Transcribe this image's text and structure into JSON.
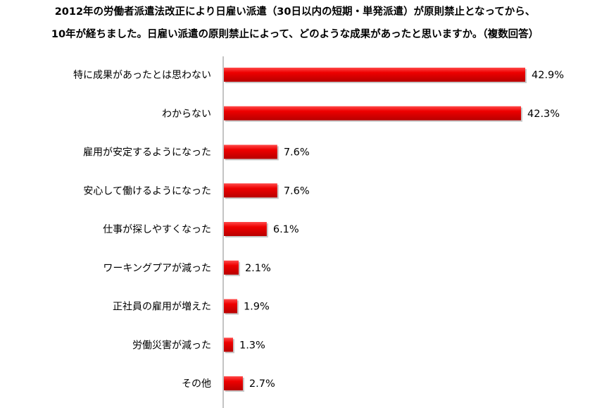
{
  "title_lines": [
    "2012年の労働者派遣法改正により日雇い派遣（30日以内の短期・単発派遣）が原則禁止となってから、",
    "10年が経ちました。日雇い派遣の原則禁止によって、どのような成果があったと思いますか。（複数回答）"
  ],
  "chart_data": {
    "type": "bar",
    "orientation": "horizontal",
    "title": "2012年の労働者派遣法改正により日雇い派遣（30日以内の短期・単発派遣）が原則禁止となってから、10年が経ちました。日雇い派遣の原則禁止によって、どのような成果があったと思いますか。（複数回答）",
    "categories": [
      "特に成果があったとは思わない",
      "わからない",
      "雇用が安定するようになった",
      "安心して働けるようになった",
      "仕事が探しやすくなった",
      "ワーキングプアが減った",
      "正社員の雇用が増えた",
      "労働災害が減った",
      "その他"
    ],
    "values": [
      42.9,
      42.3,
      7.6,
      7.6,
      6.1,
      2.1,
      1.9,
      1.3,
      2.7
    ],
    "value_labels": [
      "42.9%",
      "42.3%",
      "7.6%",
      "7.6%",
      "6.1%",
      "2.1%",
      "1.9%",
      "1.3%",
      "2.7%"
    ],
    "unit": "%",
    "bar_color": "#ee0000",
    "grid": false,
    "legend": "none"
  }
}
